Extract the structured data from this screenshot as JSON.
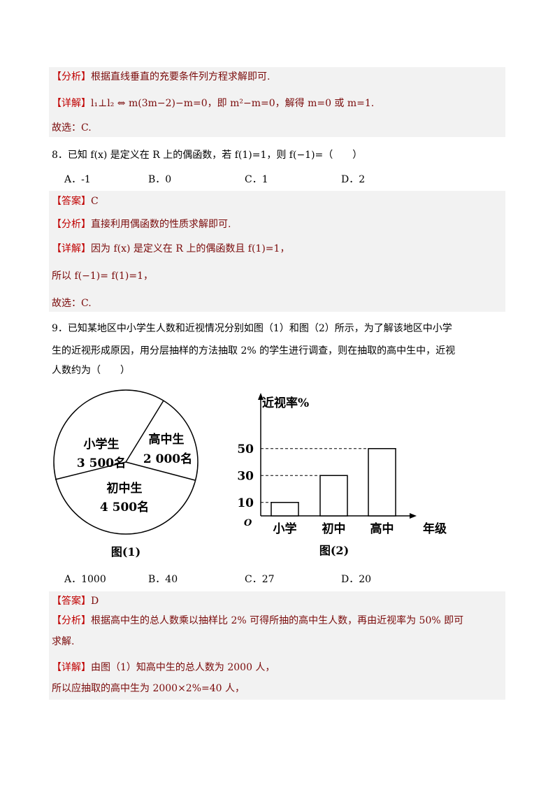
{
  "q7_solution": {
    "analysis_tag": "【分析】",
    "analysis": "根据直线垂直的充要条件列方程求解即可.",
    "detail_tag": "【详解】",
    "detail": "l₁⊥l₂ ⇔ m(3m−2)−m=0，即 m²−m=0，解得 m=0 或 m=1.",
    "choice": "故选：C."
  },
  "q8": {
    "stem": "8．已知 f(x) 是定义在 R 上的偶函数，若 f(1)=1，则 f(−1)=（　　）",
    "options": [
      "A．-1",
      "B．0",
      "C．1",
      "D．2"
    ],
    "answer_tag": "【答案】",
    "answer": "C",
    "analysis_tag": "【分析】",
    "analysis": "直接利用偶函数的性质求解即可.",
    "detail_tag": "【详解】",
    "detail": "因为 f(x) 是定义在 R 上的偶函数且 f(1)=1，",
    "detail2": "所以 f(−1)= f(1)=1，",
    "choice": "故选：C."
  },
  "q9": {
    "stem_lines": [
      "9．已知某地区中小学生人数和近视情况分别如图（1）和图（2）所示，为了解该地区中小学",
      "生的近视形成原因，用分层抽样的方法抽取 2% 的学生进行调查，则在抽取的高中生中，近视",
      "人数约为（　　）"
    ],
    "figure1": {
      "caption": "图(1)",
      "slices": [
        {
          "name": "小学生",
          "count": "3 500名",
          "value": 3500
        },
        {
          "name": "高中生",
          "count": "2 000名",
          "value": 2000
        },
        {
          "name": "初中生",
          "count": "4 500名",
          "value": 4500
        }
      ]
    },
    "figure2": {
      "caption": "图(2)",
      "ylabel": "近视率%",
      "xlabel": "年级",
      "origin": "O",
      "categories": [
        "小学",
        "初中",
        "高中"
      ],
      "values": [
        10,
        30,
        50
      ],
      "yticks": [
        "10",
        "30",
        "50"
      ]
    },
    "options": [
      "A．1000",
      "B．40",
      "C．27",
      "D．20"
    ],
    "answer_tag": "【答案】",
    "answer": "D",
    "analysis_tag": "【分析】",
    "analysis": "根据高中生的总人数乘以抽样比 2% 可得所抽的高中生人数，再由近视率为 50% 即可",
    "analysis2": "求解.",
    "detail_tag": "【详解】",
    "detail": "由图（1）知高中生的总人数为 2000 人，",
    "detail2": "所以应抽取的高中生为 2000×2%=40 人，"
  },
  "colors": {
    "answer_text": "#7a0a0a",
    "bracket": "#c00000",
    "shade": "#f2f2f2"
  }
}
